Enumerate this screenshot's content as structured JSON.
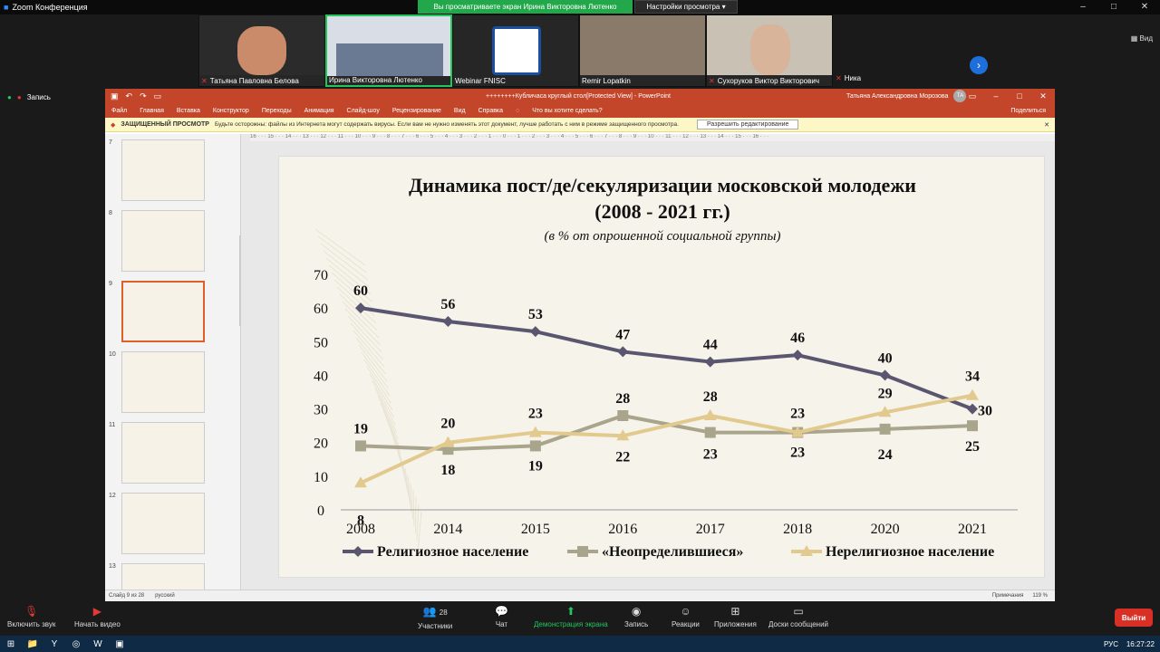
{
  "zoom": {
    "title": "Zoom Конференция",
    "share_banner": "Вы просматриваете экран Ирина Викторовна Лютенко",
    "view_settings": "Настройки просмотра",
    "view_label": "Вид",
    "recording": "Запись",
    "participants": [
      {
        "name": "Татьяна Павловна Белова",
        "muted": true
      },
      {
        "name": "Ирина Викторовна Лютенко",
        "muted": false
      },
      {
        "name": "Webinar FNISC",
        "muted": false
      },
      {
        "name": "Remir Lopatkin",
        "muted": false
      },
      {
        "name": "Сухоруков Виктор Викторович",
        "muted": true
      },
      {
        "name": "Ника",
        "muted": true
      }
    ],
    "toolbar": {
      "unmute": "Включить звук",
      "start_video": "Начать видео",
      "participants": "Участники",
      "participants_count": "28",
      "chat": "Чат",
      "share_screen": "Демонстрация экрана",
      "record": "Запись",
      "reactions": "Реакции",
      "apps": "Приложения",
      "whiteboards": "Доски сообщений",
      "leave": "Выйти"
    }
  },
  "ppt": {
    "title": "++++++++Кубличаса круглый стол[Protected View] - PowerPoint",
    "user": "Татьяна Александровна Морозова",
    "user_initials": "ТА",
    "menu": [
      "Файл",
      "Главная",
      "Вставка",
      "Конструктор",
      "Переходы",
      "Анимация",
      "Слайд-шоу",
      "Рецензирование",
      "Вид",
      "Справка",
      "Что вы хотите сделать?"
    ],
    "share": "Поделиться",
    "protected_label": "ЗАЩИЩЕННЫЙ ПРОСМОТР",
    "protected_text": "Будьте осторожны: файлы из Интернета могут содержать вирусы. Если вам не нужно изменять этот документ, лучше работать с ним в режиме защищенного просмотра.",
    "enable_editing": "Разрешить редактирование",
    "slide_numbers": [
      "7",
      "8",
      "9",
      "10",
      "11",
      "12",
      "13"
    ],
    "status_slide": "Слайд 9 из 28",
    "status_lang": "русский",
    "status_notes": "Примечания",
    "status_zoom": "119 %"
  },
  "chart_data": {
    "type": "line",
    "title": "Динамика пост/де/секуляризации московской молодежи",
    "title_line2": "(2008 - 2021 гг.)",
    "subtitle": "(в % от опрошенной социальной группы)",
    "categories": [
      "2008",
      "2014",
      "2015",
      "2016",
      "2017",
      "2018",
      "2020",
      "2021"
    ],
    "ylim": [
      0,
      70
    ],
    "yticks": [
      "0",
      "10",
      "20",
      "30",
      "40",
      "50",
      "60",
      "70"
    ],
    "grid": false,
    "legend_position": "bottom",
    "series": [
      {
        "name": "Религиозное население",
        "values": [
          60,
          56,
          53,
          47,
          44,
          46,
          40,
          30
        ],
        "color": "#5a5670",
        "marker": "diamond"
      },
      {
        "name": "«Неопределившиеся»",
        "values": [
          19,
          18,
          19,
          28,
          23,
          23,
          24,
          25
        ],
        "color": "#a8a58c",
        "marker": "square"
      },
      {
        "name": "Нерелигиозное население",
        "values": [
          8,
          20,
          23,
          22,
          28,
          23,
          29,
          34
        ],
        "color": "#e2c98e",
        "marker": "triangle"
      }
    ]
  },
  "clock": "16:27:22",
  "keyboard_lang": "РУС"
}
